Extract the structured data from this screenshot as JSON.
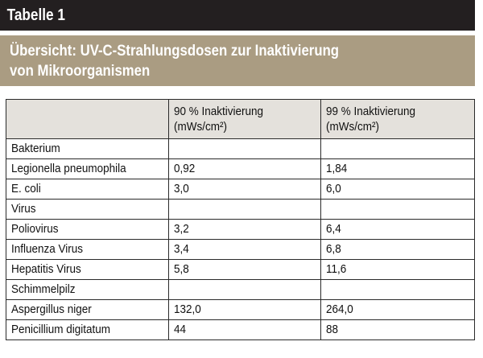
{
  "table_label": "Tabelle 1",
  "caption_line1": "Übersicht: UV-C-Strahlungsdosen zur Inaktivierung",
  "caption_line2": "von Mikroorganismen",
  "colors": {
    "title_bg": "#231f20",
    "caption_bg": "#aa9c82",
    "header_bg": "#e4e1dc",
    "border": "#2a2a2a"
  },
  "columns": [
    {
      "line1": "",
      "line2": ""
    },
    {
      "line1": "90 % Inaktivierung",
      "line2": "(mWs/cm²)"
    },
    {
      "line1": "99 % Inaktivierung",
      "line2": "(mWs/cm²)"
    }
  ],
  "rows": [
    {
      "type": "category",
      "label": "Bakterium",
      "v90": "",
      "v99": ""
    },
    {
      "type": "item",
      "label": "Legionella pneumophila",
      "v90": "0,92",
      "v99": "1,84"
    },
    {
      "type": "item",
      "label": "E. coli",
      "v90": "3,0",
      "v99": "6,0"
    },
    {
      "type": "category",
      "label": "Virus",
      "v90": "",
      "v99": ""
    },
    {
      "type": "item",
      "label": "Poliovirus",
      "v90": "3,2",
      "v99": "6,4"
    },
    {
      "type": "item",
      "label": "Influenza Virus",
      "v90": "3,4",
      "v99": "6,8"
    },
    {
      "type": "item",
      "label": "Hepatitis Virus",
      "v90": "5,8",
      "v99": "11,6"
    },
    {
      "type": "category",
      "label": "Schimmelpilz",
      "v90": "",
      "v99": ""
    },
    {
      "type": "item",
      "label": "Aspergillus niger",
      "v90": "132,0",
      "v99": "264,0"
    },
    {
      "type": "item",
      "label": "Penicillium digitatum",
      "v90": "44",
      "v99": "88"
    }
  ]
}
